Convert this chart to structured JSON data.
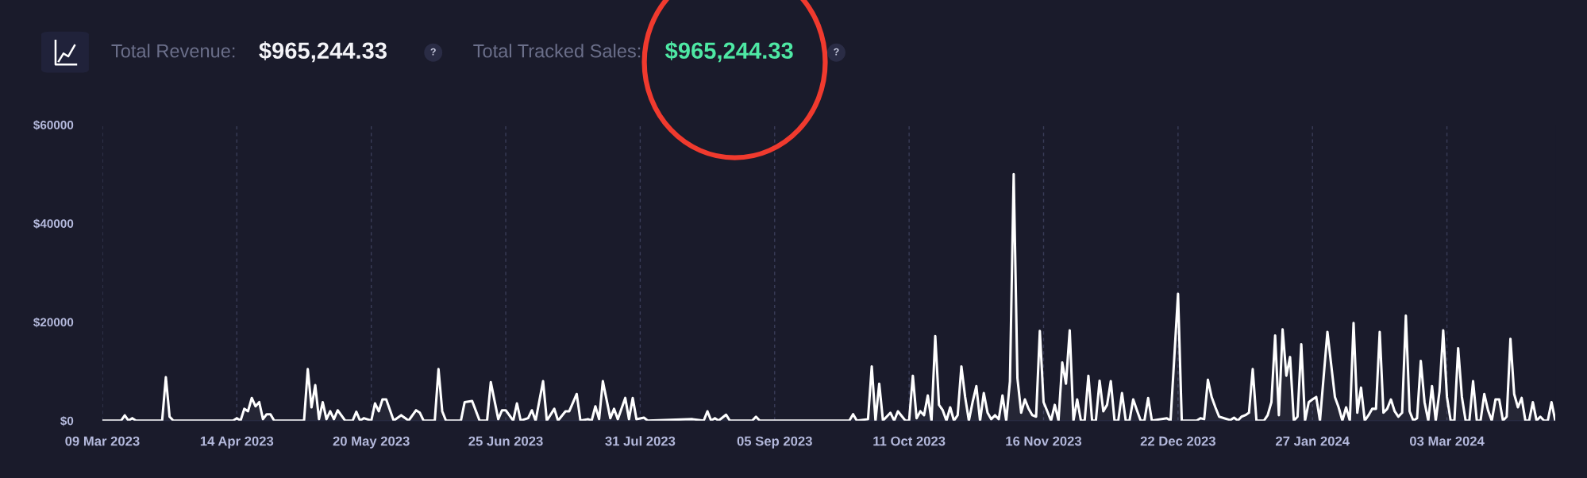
{
  "chart_data": {
    "type": "area",
    "annotations": [
      "Total Revenue:",
      "$965,244.33",
      "?",
      "Total Tracked Sales:",
      "$965,244.33",
      "?"
    ],
    "x": [
      "2023-03-09",
      "2023-03-14",
      "2023-03-15",
      "2023-03-16",
      "2023-03-17",
      "2023-03-18",
      "2023-03-25",
      "2023-03-26",
      "2023-03-27",
      "2023-03-28",
      "2023-04-13",
      "2023-04-14",
      "2023-04-15",
      "2023-04-16",
      "2023-04-17",
      "2023-04-18",
      "2023-04-19",
      "2023-04-20",
      "2023-04-21",
      "2023-04-22",
      "2023-04-23",
      "2023-04-24",
      "2023-05-02",
      "2023-05-03",
      "2023-05-04",
      "2023-05-05",
      "2023-05-06",
      "2023-05-07",
      "2023-05-08",
      "2023-05-09",
      "2023-05-10",
      "2023-05-11",
      "2023-05-13",
      "2023-05-15",
      "2023-05-16",
      "2023-05-17",
      "2023-05-18",
      "2023-05-20",
      "2023-05-21",
      "2023-05-22",
      "2023-05-23",
      "2023-05-24",
      "2023-05-26",
      "2023-05-28",
      "2023-05-30",
      "2023-06-01",
      "2023-06-02",
      "2023-06-03",
      "2023-06-06",
      "2023-06-07",
      "2023-06-08",
      "2023-06-09",
      "2023-06-13",
      "2023-06-14",
      "2023-06-16",
      "2023-06-18",
      "2023-06-20",
      "2023-06-21",
      "2023-06-23",
      "2023-06-24",
      "2023-06-25",
      "2023-06-27",
      "2023-06-28",
      "2023-06-29",
      "2023-07-01",
      "2023-07-02",
      "2023-07-03",
      "2023-07-05",
      "2023-07-06",
      "2023-07-08",
      "2023-07-09",
      "2023-07-11",
      "2023-07-12",
      "2023-07-14",
      "2023-07-15",
      "2023-07-17",
      "2023-07-18",
      "2023-07-19",
      "2023-07-20",
      "2023-07-21",
      "2023-07-23",
      "2023-07-24",
      "2023-07-25",
      "2023-07-27",
      "2023-07-28",
      "2023-07-29",
      "2023-07-30",
      "2023-08-01",
      "2023-08-02",
      "2023-08-14",
      "2023-08-17",
      "2023-08-18",
      "2023-08-19",
      "2023-08-20",
      "2023-08-21",
      "2023-08-23",
      "2023-08-24",
      "2023-08-30",
      "2023-08-31",
      "2023-09-01",
      "2023-09-25",
      "2023-09-26",
      "2023-09-27",
      "2023-09-30",
      "2023-10-01",
      "2023-10-02",
      "2023-10-03",
      "2023-10-04",
      "2023-10-06",
      "2023-10-07",
      "2023-10-08",
      "2023-10-10",
      "2023-10-11",
      "2023-10-12",
      "2023-10-13",
      "2023-10-14",
      "2023-10-15",
      "2023-10-16",
      "2023-10-17",
      "2023-10-18",
      "2023-10-19",
      "2023-10-20",
      "2023-10-21",
      "2023-10-22",
      "2023-10-23",
      "2023-10-24",
      "2023-10-25",
      "2023-10-26",
      "2023-10-27",
      "2023-10-28",
      "2023-10-29",
      "2023-10-30",
      "2023-10-31",
      "2023-11-01",
      "2023-11-02",
      "2023-11-03",
      "2023-11-04",
      "2023-11-05",
      "2023-11-06",
      "2023-11-07",
      "2023-11-08",
      "2023-11-09",
      "2023-11-10",
      "2023-11-11",
      "2023-11-12",
      "2023-11-13",
      "2023-11-14",
      "2023-11-15",
      "2023-11-16",
      "2023-11-17",
      "2023-11-18",
      "2023-11-19",
      "2023-11-20",
      "2023-11-21",
      "2023-11-22",
      "2023-11-23",
      "2023-11-24",
      "2023-11-25",
      "2023-11-26",
      "2023-11-27",
      "2023-11-28",
      "2023-11-29",
      "2023-11-30",
      "2023-12-01",
      "2023-12-02",
      "2023-12-03",
      "2023-12-04",
      "2023-12-05",
      "2023-12-06",
      "2023-12-07",
      "2023-12-08",
      "2023-12-09",
      "2023-12-10",
      "2023-12-11",
      "2023-12-12",
      "2023-12-13",
      "2023-12-14",
      "2023-12-15",
      "2023-12-19",
      "2023-12-20",
      "2023-12-22",
      "2023-12-23",
      "2023-12-27",
      "2023-12-28",
      "2023-12-29",
      "2023-12-30",
      "2023-12-31",
      "2024-01-01",
      "2024-01-02",
      "2024-01-05",
      "2024-01-06",
      "2024-01-07",
      "2024-01-08",
      "2024-01-09",
      "2024-01-10",
      "2024-01-11",
      "2024-01-12",
      "2024-01-14",
      "2024-01-15",
      "2024-01-16",
      "2024-01-17",
      "2024-01-18",
      "2024-01-19",
      "2024-01-20",
      "2024-01-21",
      "2024-01-22",
      "2024-01-23",
      "2024-01-24",
      "2024-01-25",
      "2024-01-26",
      "2024-01-27",
      "2024-01-28",
      "2024-01-29",
      "2024-01-31",
      "2024-02-02",
      "2024-02-03",
      "2024-02-04",
      "2024-02-05",
      "2024-02-06",
      "2024-02-07",
      "2024-02-08",
      "2024-02-09",
      "2024-02-10",
      "2024-02-11",
      "2024-02-12",
      "2024-02-13",
      "2024-02-14",
      "2024-02-15",
      "2024-02-16",
      "2024-02-17",
      "2024-02-18",
      "2024-02-19",
      "2024-02-20",
      "2024-02-21",
      "2024-02-22",
      "2024-02-23",
      "2024-02-24",
      "2024-02-25",
      "2024-02-26",
      "2024-02-27",
      "2024-02-28",
      "2024-02-29",
      "2024-03-01",
      "2024-03-02",
      "2024-03-03",
      "2024-03-04",
      "2024-03-05",
      "2024-03-06",
      "2024-03-07",
      "2024-03-08",
      "2024-03-09",
      "2024-03-10",
      "2024-03-11",
      "2024-03-12",
      "2024-03-13",
      "2024-03-14",
      "2024-03-15",
      "2024-03-16",
      "2024-03-17",
      "2024-03-18",
      "2024-03-19",
      "2024-03-20",
      "2024-03-21",
      "2024-03-22",
      "2024-03-23",
      "2024-03-24",
      "2024-03-25",
      "2024-03-26",
      "2024-03-27",
      "2024-03-28",
      "2024-03-29",
      "2024-03-30",
      "2024-03-31",
      "2024-04-01"
    ],
    "series": [
      {
        "color": "#ffffff",
        "values": [
          0,
          0,
          1070,
          0,
          500,
          0,
          0,
          8800,
          800,
          0,
          0,
          500,
          0,
          2400,
          1900,
          4600,
          2900,
          3750,
          300,
          1300,
          1300,
          0,
          0,
          10450,
          2700,
          7200,
          300,
          3750,
          300,
          1900,
          300,
          2100,
          0,
          0,
          1800,
          0,
          500,
          0,
          3500,
          1900,
          4300,
          4300,
          0,
          1100,
          0,
          2100,
          1600,
          0,
          0,
          10450,
          1900,
          0,
          0,
          3750,
          4000,
          0,
          0,
          7800,
          300,
          2100,
          2100,
          0,
          3500,
          0,
          500,
          2100,
          0,
          8000,
          0,
          2400,
          0,
          1900,
          1900,
          5400,
          0,
          300,
          0,
          2900,
          300,
          8000,
          500,
          2400,
          300,
          4600,
          300,
          4600,
          300,
          600,
          0,
          300,
          0,
          1900,
          0,
          500,
          0,
          1200,
          0,
          0,
          800,
          0,
          0,
          1300,
          0,
          300,
          11000,
          0,
          7500,
          0,
          1600,
          0,
          1900,
          0,
          0,
          9100,
          500,
          1900,
          1100,
          5100,
          0,
          17150,
          3200,
          2100,
          0,
          2700,
          0,
          1100,
          11000,
          4800,
          0,
          3750,
          7000,
          0,
          5600,
          1600,
          300,
          1100,
          300,
          5100,
          0,
          8000,
          50000,
          8600,
          1600,
          4300,
          2400,
          1100,
          800,
          18200,
          3750,
          1900,
          0,
          3200,
          0,
          11800,
          7500,
          18300,
          0,
          4300,
          0,
          0,
          9100,
          0,
          0,
          8100,
          1900,
          3200,
          8000,
          0,
          0,
          5600,
          0,
          0,
          4300,
          2100,
          0,
          0,
          4600,
          0,
          500,
          0,
          25700,
          0,
          0,
          500,
          300,
          8300,
          4800,
          2700,
          800,
          100,
          600,
          0,
          800,
          1100,
          1600,
          10450,
          0,
          0,
          1100,
          3750,
          17250,
          1100,
          18500,
          9100,
          12900,
          0,
          800,
          15500,
          0,
          3750,
          4300,
          4800,
          0,
          18000,
          4800,
          2700,
          0,
          2700,
          0,
          19800,
          1600,
          6700,
          0,
          1100,
          2400,
          2400,
          18000,
          1600,
          2400,
          4300,
          1900,
          800,
          1600,
          21300,
          1900,
          0,
          500,
          12100,
          3750,
          0,
          7000,
          0,
          5900,
          18300,
          4800,
          0,
          0,
          14700,
          4800,
          0,
          0,
          8000,
          0,
          0,
          5400,
          2100,
          0,
          4300,
          4300,
          0,
          800,
          16600,
          5400,
          2700,
          4600,
          0,
          0,
          3750,
          0,
          800,
          0,
          0,
          3750,
          0
        ]
      }
    ],
    "xlim": [
      "2023-03-09",
      "2024-04-01"
    ],
    "xticks": [
      {
        "value": "2023-03-09",
        "label": "09 Mar 2023"
      },
      {
        "value": "2023-04-14",
        "label": "14 Apr 2023"
      },
      {
        "value": "2023-05-20",
        "label": "20 May 2023"
      },
      {
        "value": "2023-06-25",
        "label": "25 Jun 2023"
      },
      {
        "value": "2023-07-31",
        "label": "31 Jul 2023"
      },
      {
        "value": "2023-09-05",
        "label": "05 Sep 2023"
      },
      {
        "value": "2023-10-11",
        "label": "11 Oct 2023"
      },
      {
        "value": "2023-11-16",
        "label": "16 Nov 2023"
      },
      {
        "value": "2023-12-22",
        "label": "22 Dec 2023"
      },
      {
        "value": "2024-01-27",
        "label": "27 Jan 2024"
      },
      {
        "value": "2024-03-03",
        "label": "03 Mar 2024"
      }
    ],
    "ylim": [
      0,
      60000
    ],
    "yticks": [
      {
        "value": 0,
        "label": "$0"
      },
      {
        "value": 20000,
        "label": "$20000"
      },
      {
        "value": 40000,
        "label": "$40000"
      },
      {
        "value": 60000,
        "label": "$60000"
      }
    ],
    "grid": "x"
  }
}
